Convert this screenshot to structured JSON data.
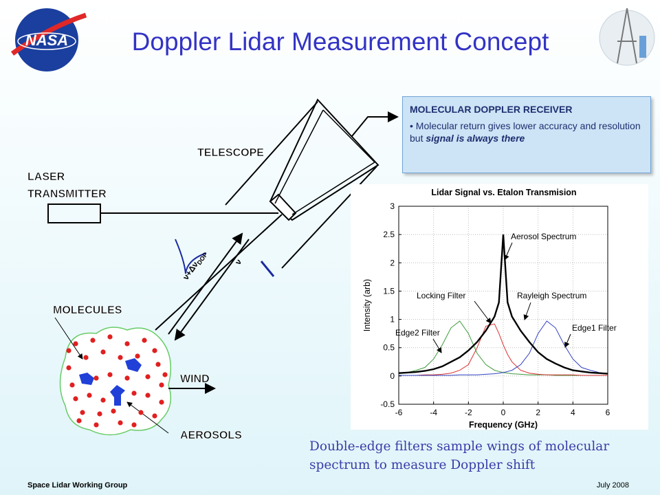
{
  "header": {
    "title": "Doppler Lidar Measurement Concept",
    "logo_text": "NASA"
  },
  "diagram": {
    "laser": [
      "LASER",
      "TRANSMITTER"
    ],
    "telescope": "TELESCOPE",
    "molecules": "MOLECULES",
    "wind": "WIND",
    "aerosols": "AEROSOLS",
    "shifted_frequency": "ν+Δν",
    "shifted_frequency_subscript": "DOP",
    "frequency": "ν"
  },
  "receiver_box": {
    "heading": "MOLECULAR DOPPLER RECEIVER",
    "bullet_plain": "• Molecular return gives lower accuracy and resolution but ",
    "bullet_emphasis": "signal is always there"
  },
  "chart_data": {
    "type": "line",
    "title": "Lidar Signal vs. Etalon Transmision",
    "x_label": "Frequency (GHz)",
    "y_label": "Intensity (arb)",
    "x": [
      -6,
      -5.5,
      -5,
      -4.5,
      -4,
      -3.5,
      -3,
      -2.5,
      -2,
      -1.5,
      -1,
      -0.5,
      -0.25,
      0,
      0.25,
      0.5,
      1,
      1.5,
      2,
      2.5,
      3,
      3.5,
      4,
      4.5,
      5,
      5.5,
      6
    ],
    "series": [
      {
        "color": "#3a9a3a",
        "values": [
          0.04,
          0.06,
          0.1,
          0.15,
          0.3,
          0.55,
          0.85,
          0.97,
          0.75,
          0.4,
          0.2,
          0.1,
          0.08,
          0.06,
          0.05,
          0.04,
          0.03,
          0.02,
          0.02,
          0.02,
          0.01,
          0.01,
          0.01,
          0.01,
          0.01,
          0.01,
          0.01
        ]
      },
      {
        "color": "#d93030",
        "values": [
          0.01,
          0.01,
          0.01,
          0.02,
          0.02,
          0.03,
          0.05,
          0.1,
          0.2,
          0.5,
          0.88,
          0.92,
          0.75,
          0.55,
          0.38,
          0.25,
          0.1,
          0.05,
          0.03,
          0.02,
          0.02,
          0.02,
          0.02,
          0.01,
          0.01,
          0.01,
          0.01
        ]
      },
      {
        "color": "#3040c0",
        "values": [
          0.01,
          0.01,
          0.01,
          0.01,
          0.01,
          0.01,
          0.01,
          0.02,
          0.02,
          0.02,
          0.03,
          0.04,
          0.05,
          0.06,
          0.08,
          0.1,
          0.2,
          0.4,
          0.75,
          0.97,
          0.85,
          0.55,
          0.3,
          0.15,
          0.1,
          0.06,
          0.04
        ]
      },
      {
        "color": "#000000",
        "values": [
          0.05,
          0.06,
          0.07,
          0.09,
          0.12,
          0.17,
          0.25,
          0.33,
          0.45,
          0.6,
          0.8,
          1.05,
          1.3,
          2.5,
          1.3,
          1.05,
          0.8,
          0.6,
          0.42,
          0.3,
          0.22,
          0.15,
          0.1,
          0.08,
          0.06,
          0.05,
          0.04
        ]
      }
    ],
    "xlim": [
      -6,
      6
    ],
    "xticks": [
      -6,
      -4,
      -2,
      0,
      2,
      4,
      6
    ],
    "ylim": [
      -0.5,
      3
    ],
    "yticks": [
      -0.5,
      0,
      0.5,
      1,
      1.5,
      2,
      2.5,
      3
    ],
    "grid": true,
    "annotations": [
      "Aerosol Spectrum",
      "Locking Filter",
      "Rayleigh Spectrum",
      "Edge1 Filter",
      "Edge2 Filter"
    ]
  },
  "caption": [
    "Double-edge filters sample wings of molecular",
    "spectrum to measure Doppler shift"
  ],
  "footer": {
    "left": "Space Lidar Working Group",
    "right": "July 2008"
  }
}
